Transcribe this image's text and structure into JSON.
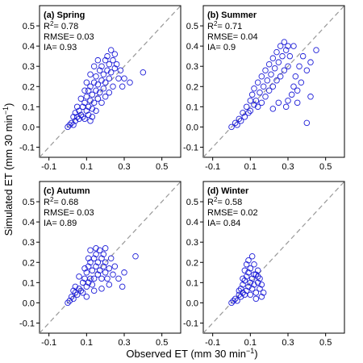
{
  "chart_data": {
    "type": "scatter",
    "xlabel": "Observed ET (mm 30 min",
    "xlabel_sup": "−1",
    "xlabel_close": ")",
    "ylabel": "Simulated ET (mm 30 min",
    "ylabel_sup": "−1",
    "ylabel_close": ")",
    "xlim": [
      -0.15,
      0.6
    ],
    "ylim": [
      -0.15,
      0.6
    ],
    "xticks": [
      "-0.1",
      "0.1",
      "0.3",
      "0.5"
    ],
    "xtick_values": [
      -0.1,
      0.1,
      0.3,
      0.5
    ],
    "yticks": [
      "-0.1",
      "0.0",
      "0.1",
      "0.2",
      "0.3",
      "0.4",
      "0.5"
    ],
    "ytick_values": [
      -0.1,
      0.0,
      0.1,
      0.2,
      0.3,
      0.4,
      0.5
    ],
    "reference_line": "1:1",
    "marker_color": "#1f1fd8",
    "line_color": "#999999",
    "panels": [
      {
        "title": "(a) Spring",
        "stats": {
          "r2_label": "R",
          "r2_sup": "2",
          "r2_value": "= 0.78",
          "rmse": "RMSE= 0.03",
          "ia": "IA= 0.93"
        },
        "points": [
          [
            0.0,
            0.0
          ],
          [
            0.01,
            0.01
          ],
          [
            0.02,
            0.02
          ],
          [
            0.03,
            0.01
          ],
          [
            0.04,
            0.03
          ],
          [
            0.05,
            0.05
          ],
          [
            0.06,
            0.04
          ],
          [
            0.06,
            0.08
          ],
          [
            0.07,
            0.06
          ],
          [
            0.08,
            0.1
          ],
          [
            0.08,
            0.05
          ],
          [
            0.09,
            0.12
          ],
          [
            0.1,
            0.08
          ],
          [
            0.1,
            0.15
          ],
          [
            0.11,
            0.1
          ],
          [
            0.11,
            0.18
          ],
          [
            0.12,
            0.13
          ],
          [
            0.12,
            0.2
          ],
          [
            0.13,
            0.09
          ],
          [
            0.13,
            0.16
          ],
          [
            0.14,
            0.22
          ],
          [
            0.14,
            0.12
          ],
          [
            0.15,
            0.18
          ],
          [
            0.15,
            0.25
          ],
          [
            0.16,
            0.14
          ],
          [
            0.16,
            0.21
          ],
          [
            0.17,
            0.28
          ],
          [
            0.17,
            0.17
          ],
          [
            0.18,
            0.23
          ],
          [
            0.18,
            0.3
          ],
          [
            0.19,
            0.19
          ],
          [
            0.19,
            0.26
          ],
          [
            0.2,
            0.33
          ],
          [
            0.2,
            0.22
          ],
          [
            0.21,
            0.28
          ],
          [
            0.21,
            0.35
          ],
          [
            0.22,
            0.24
          ],
          [
            0.22,
            0.31
          ],
          [
            0.23,
            0.38
          ],
          [
            0.23,
            0.27
          ],
          [
            0.24,
            0.33
          ],
          [
            0.25,
            0.29
          ],
          [
            0.25,
            0.36
          ],
          [
            0.26,
            0.31
          ],
          [
            0.27,
            0.24
          ],
          [
            0.28,
            0.28
          ],
          [
            0.29,
            0.2
          ],
          [
            0.3,
            0.24
          ],
          [
            0.33,
            0.22
          ],
          [
            0.4,
            0.27
          ],
          [
            0.05,
            0.1
          ],
          [
            0.07,
            0.14
          ],
          [
            0.09,
            0.18
          ],
          [
            0.1,
            0.22
          ],
          [
            0.12,
            0.26
          ],
          [
            0.14,
            0.3
          ],
          [
            0.16,
            0.33
          ],
          [
            0.09,
            0.04
          ],
          [
            0.11,
            0.06
          ],
          [
            0.13,
            0.05
          ],
          [
            0.15,
            0.08
          ],
          [
            0.18,
            0.12
          ],
          [
            0.2,
            0.15
          ],
          [
            0.22,
            0.17
          ],
          [
            0.24,
            0.2
          ],
          [
            0.03,
            0.05
          ],
          [
            0.04,
            0.07
          ],
          [
            0.12,
            0.03
          ]
        ]
      },
      {
        "title": "(b) Summer",
        "stats": {
          "r2_label": "R",
          "r2_sup": "2",
          "r2_value": "= 0.71",
          "rmse": "RMSE= 0.04",
          "ia": "IA= 0.9"
        },
        "points": [
          [
            0.0,
            0.0
          ],
          [
            0.02,
            0.02
          ],
          [
            0.03,
            0.01
          ],
          [
            0.04,
            0.04
          ],
          [
            0.05,
            0.03
          ],
          [
            0.06,
            0.07
          ],
          [
            0.07,
            0.05
          ],
          [
            0.08,
            0.1
          ],
          [
            0.09,
            0.07
          ],
          [
            0.1,
            0.13
          ],
          [
            0.1,
            0.08
          ],
          [
            0.11,
            0.16
          ],
          [
            0.12,
            0.11
          ],
          [
            0.12,
            0.19
          ],
          [
            0.13,
            0.13
          ],
          [
            0.14,
            0.22
          ],
          [
            0.14,
            0.1
          ],
          [
            0.15,
            0.17
          ],
          [
            0.16,
            0.25
          ],
          [
            0.16,
            0.12
          ],
          [
            0.17,
            0.2
          ],
          [
            0.18,
            0.28
          ],
          [
            0.18,
            0.15
          ],
          [
            0.19,
            0.23
          ],
          [
            0.2,
            0.31
          ],
          [
            0.2,
            0.18
          ],
          [
            0.21,
            0.26
          ],
          [
            0.22,
            0.34
          ],
          [
            0.22,
            0.2
          ],
          [
            0.23,
            0.29
          ],
          [
            0.24,
            0.37
          ],
          [
            0.24,
            0.23
          ],
          [
            0.25,
            0.32
          ],
          [
            0.26,
            0.4
          ],
          [
            0.26,
            0.25
          ],
          [
            0.27,
            0.35
          ],
          [
            0.28,
            0.42
          ],
          [
            0.28,
            0.28
          ],
          [
            0.29,
            0.38
          ],
          [
            0.3,
            0.3
          ],
          [
            0.3,
            0.4
          ],
          [
            0.31,
            0.35
          ],
          [
            0.32,
            0.16
          ],
          [
            0.33,
            0.2
          ],
          [
            0.34,
            0.25
          ],
          [
            0.35,
            0.18
          ],
          [
            0.36,
            0.3
          ],
          [
            0.37,
            0.22
          ],
          [
            0.38,
            0.35
          ],
          [
            0.4,
            0.28
          ],
          [
            0.42,
            0.32
          ],
          [
            0.42,
            0.15
          ],
          [
            0.4,
            0.02
          ],
          [
            0.45,
            0.38
          ],
          [
            0.33,
            0.4
          ],
          [
            0.29,
            0.1
          ],
          [
            0.25,
            0.12
          ],
          [
            0.22,
            0.09
          ],
          [
            0.3,
            0.13
          ],
          [
            0.35,
            0.12
          ]
        ]
      },
      {
        "title": "(c) Autumn",
        "stats": {
          "r2_label": "R",
          "r2_sup": "2",
          "r2_value": "= 0.68",
          "rmse": "RMSE= 0.03",
          "ia": "IA= 0.89"
        },
        "points": [
          [
            0.0,
            0.0
          ],
          [
            0.01,
            0.01
          ],
          [
            0.02,
            0.03
          ],
          [
            0.03,
            0.02
          ],
          [
            0.04,
            0.05
          ],
          [
            0.05,
            0.04
          ],
          [
            0.06,
            0.07
          ],
          [
            0.07,
            0.06
          ],
          [
            0.08,
            0.1
          ],
          [
            0.08,
            0.05
          ],
          [
            0.09,
            0.12
          ],
          [
            0.1,
            0.08
          ],
          [
            0.1,
            0.15
          ],
          [
            0.11,
            0.1
          ],
          [
            0.11,
            0.18
          ],
          [
            0.12,
            0.12
          ],
          [
            0.12,
            0.2
          ],
          [
            0.13,
            0.09
          ],
          [
            0.13,
            0.16
          ],
          [
            0.14,
            0.22
          ],
          [
            0.14,
            0.12
          ],
          [
            0.15,
            0.18
          ],
          [
            0.15,
            0.24
          ],
          [
            0.16,
            0.14
          ],
          [
            0.16,
            0.2
          ],
          [
            0.17,
            0.26
          ],
          [
            0.17,
            0.16
          ],
          [
            0.18,
            0.22
          ],
          [
            0.18,
            0.12
          ],
          [
            0.19,
            0.18
          ],
          [
            0.19,
            0.24
          ],
          [
            0.2,
            0.15
          ],
          [
            0.2,
            0.2
          ],
          [
            0.21,
            0.12
          ],
          [
            0.22,
            0.17
          ],
          [
            0.23,
            0.22
          ],
          [
            0.24,
            0.14
          ],
          [
            0.25,
            0.18
          ],
          [
            0.27,
            0.12
          ],
          [
            0.29,
            0.08
          ],
          [
            0.3,
            0.15
          ],
          [
            0.36,
            0.23
          ],
          [
            0.06,
            0.13
          ],
          [
            0.09,
            0.17
          ],
          [
            0.12,
            0.26
          ],
          [
            0.15,
            0.27
          ],
          [
            0.2,
            0.27
          ],
          [
            0.1,
            0.03
          ],
          [
            0.14,
            0.06
          ],
          [
            0.18,
            0.07
          ],
          [
            0.22,
            0.09
          ],
          [
            0.04,
            0.08
          ],
          [
            0.03,
            0.06
          ],
          [
            0.11,
            0.22
          ]
        ]
      },
      {
        "title": "(d) Winter",
        "stats": {
          "r2_label": "R",
          "r2_sup": "2",
          "r2_value": "= 0.58",
          "rmse": "RMSE= 0.02",
          "ia": "IA= 0.84"
        },
        "points": [
          [
            0.0,
            0.0
          ],
          [
            0.01,
            0.01
          ],
          [
            0.02,
            0.02
          ],
          [
            0.03,
            0.01
          ],
          [
            0.04,
            0.04
          ],
          [
            0.05,
            0.03
          ],
          [
            0.05,
            0.07
          ],
          [
            0.06,
            0.05
          ],
          [
            0.06,
            0.09
          ],
          [
            0.07,
            0.04
          ],
          [
            0.07,
            0.11
          ],
          [
            0.08,
            0.06
          ],
          [
            0.08,
            0.13
          ],
          [
            0.09,
            0.08
          ],
          [
            0.09,
            0.15
          ],
          [
            0.1,
            0.1
          ],
          [
            0.1,
            0.17
          ],
          [
            0.11,
            0.07
          ],
          [
            0.11,
            0.12
          ],
          [
            0.12,
            0.19
          ],
          [
            0.12,
            0.09
          ],
          [
            0.13,
            0.14
          ],
          [
            0.13,
            0.05
          ],
          [
            0.14,
            0.1
          ],
          [
            0.14,
            0.16
          ],
          [
            0.15,
            0.07
          ],
          [
            0.15,
            0.12
          ],
          [
            0.16,
            0.03
          ],
          [
            0.16,
            0.09
          ],
          [
            0.17,
            0.05
          ],
          [
            0.11,
            0.23
          ],
          [
            0.09,
            0.21
          ],
          [
            0.07,
            0.16
          ],
          [
            0.08,
            0.19
          ],
          [
            0.12,
            0.14
          ],
          [
            0.1,
            0.04
          ],
          [
            0.13,
            0.02
          ],
          [
            0.04,
            0.06
          ],
          [
            0.06,
            0.12
          ],
          [
            0.14,
            0.13
          ]
        ]
      }
    ]
  }
}
